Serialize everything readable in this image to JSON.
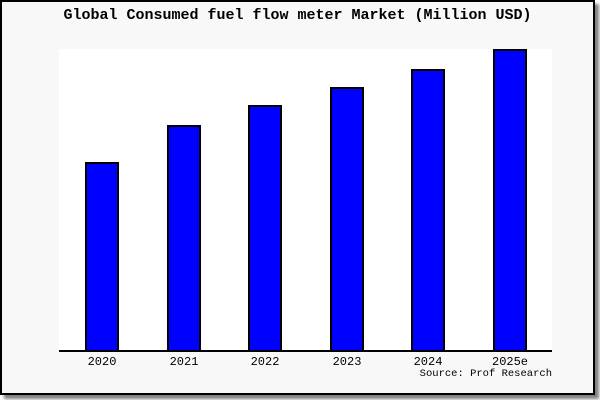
{
  "window": {
    "background": "#f8f8f8",
    "border_color": "#000000",
    "shadow": "bottom-right gray drop shadow"
  },
  "chart_data": {
    "type": "bar",
    "title": "Global Consumed fuel flow meter Market (Million USD)",
    "categories": [
      "2020",
      "2021",
      "2022",
      "2023",
      "2024",
      "2025e"
    ],
    "values": [
      62.5,
      74.8,
      81.4,
      87.4,
      93.4,
      100
    ],
    "value_scale_note": "no y-axis or value labels shown; values are relative bar heights with 2025e = 100",
    "xlabel": "",
    "ylabel": "",
    "ylim": [
      0,
      100
    ],
    "grid": false,
    "legend": "none",
    "bar_color": "#0000ff",
    "bar_border_color": "#000000",
    "plot_background": "#ffffff",
    "source_note": "Source: Prof Research"
  }
}
